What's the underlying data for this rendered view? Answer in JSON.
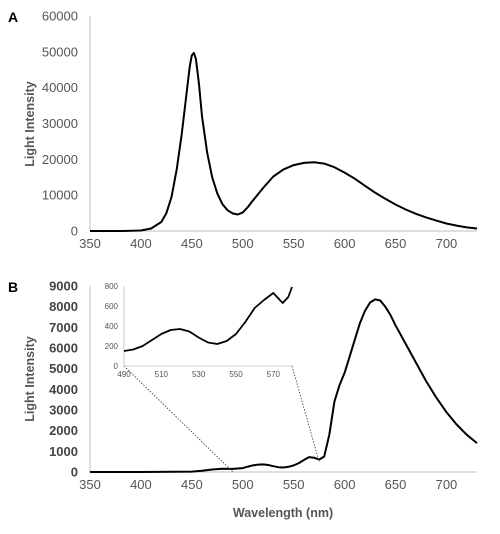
{
  "chart_data": [
    {
      "panel": "A",
      "type": "line",
      "xlabel": "",
      "ylabel": "Light Intensity",
      "xlim": [
        350,
        730
      ],
      "ylim": [
        0,
        60000
      ],
      "xticks": [
        "350",
        "400",
        "450",
        "500",
        "550",
        "600",
        "650",
        "700"
      ],
      "yticks": [
        "0",
        "10000",
        "20000",
        "30000",
        "40000",
        "50000",
        "60000"
      ],
      "grid": false,
      "series": [
        {
          "x": [
            350,
            380,
            400,
            410,
            420,
            425,
            430,
            435,
            440,
            445,
            448,
            450,
            452,
            454,
            457,
            460,
            465,
            470,
            475,
            480,
            485,
            490,
            495,
            500,
            505,
            510,
            520,
            530,
            540,
            550,
            560,
            570,
            580,
            590,
            600,
            610,
            620,
            630,
            640,
            650,
            660,
            670,
            680,
            690,
            700,
            710,
            720,
            730
          ],
          "y": [
            0,
            0,
            150,
            700,
            2500,
            5000,
            9500,
            17000,
            27000,
            39000,
            46000,
            49000,
            49700,
            48000,
            41000,
            32000,
            22000,
            15000,
            10500,
            7500,
            5800,
            4900,
            4600,
            5200,
            6700,
            8500,
            12000,
            15200,
            17200,
            18400,
            19000,
            19200,
            18800,
            17800,
            16300,
            14600,
            12600,
            10700,
            9000,
            7400,
            6000,
            4800,
            3800,
            2900,
            2100,
            1500,
            1000,
            700
          ]
        }
      ]
    },
    {
      "panel": "B",
      "type": "line",
      "xlabel": "Wavelength (nm)",
      "ylabel": "Light Intensity",
      "xlim": [
        350,
        730
      ],
      "ylim": [
        0,
        9000
      ],
      "xticks": [
        "350",
        "400",
        "450",
        "500",
        "550",
        "600",
        "650",
        "700"
      ],
      "yticks": [
        "0",
        "1000",
        "2000",
        "3000",
        "4000",
        "5000",
        "6000",
        "7000",
        "8000",
        "9000"
      ],
      "grid": false,
      "series": [
        {
          "x": [
            350,
            400,
            450,
            460,
            470,
            480,
            490,
            500,
            505,
            510,
            515,
            520,
            525,
            530,
            535,
            540,
            545,
            550,
            555,
            560,
            565,
            570,
            575,
            580,
            585,
            590,
            595,
            600,
            605,
            610,
            615,
            620,
            625,
            630,
            635,
            640,
            645,
            650,
            660,
            670,
            680,
            690,
            700,
            710,
            720,
            730
          ],
          "y": [
            0,
            0,
            20,
            60,
            120,
            160,
            150,
            190,
            260,
            320,
            360,
            370,
            340,
            280,
            230,
            220,
            250,
            320,
            430,
            580,
            720,
            690,
            600,
            750,
            1800,
            3400,
            4200,
            4800,
            5600,
            6400,
            7200,
            7800,
            8200,
            8350,
            8300,
            8000,
            7600,
            7100,
            6200,
            5300,
            4400,
            3600,
            2900,
            2300,
            1800,
            1400
          ]
        }
      ],
      "inset": {
        "xlim": [
          490,
          580
        ],
        "ylim": [
          0,
          800
        ],
        "xticks": [
          "490",
          "510",
          "530",
          "550",
          "570"
        ],
        "yticks": [
          "0",
          "200",
          "400",
          "600",
          "800"
        ],
        "series": [
          {
            "x": [
              490,
              495,
              500,
              505,
              510,
              515,
              520,
              525,
              530,
              535,
              540,
              545,
              550,
              555,
              560,
              565,
              570,
              575,
              578,
              580
            ],
            "y": [
              150,
              165,
              200,
              260,
              320,
              360,
              370,
              345,
              285,
              235,
              220,
              250,
              320,
              440,
              580,
              660,
              730,
              630,
              690,
              790
            ]
          }
        ]
      }
    }
  ]
}
